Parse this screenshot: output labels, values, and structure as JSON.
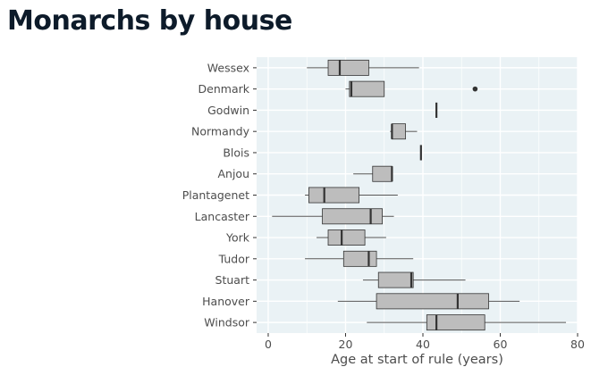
{
  "page": {
    "title": "Monarchs by house"
  },
  "chart_data": {
    "type": "boxplot",
    "orientation": "horizontal",
    "xlabel": "Age at start of rule (years)",
    "ylabel": "",
    "xlim": [
      -3,
      80
    ],
    "xticks": [
      0,
      20,
      40,
      60,
      80
    ],
    "grid": true,
    "categories": [
      "Wessex",
      "Denmark",
      "Godwin",
      "Normandy",
      "Blois",
      "Anjou",
      "Plantagenet",
      "Lancaster",
      "York",
      "Tudor",
      "Stuart",
      "Hanover",
      "Windsor"
    ],
    "boxes": [
      {
        "house": "Wessex",
        "min": 10,
        "q1": 15.5,
        "median": 18.5,
        "q3": 26,
        "max": 39,
        "outliers": []
      },
      {
        "house": "Denmark",
        "min": 20,
        "q1": 21,
        "median": 21.5,
        "q3": 30,
        "max": 30,
        "outliers": [
          53.5
        ]
      },
      {
        "house": "Godwin",
        "min": 43.5,
        "q1": 43.5,
        "median": 43.5,
        "q3": 43.5,
        "max": 43.5,
        "outliers": []
      },
      {
        "house": "Normandy",
        "min": 31.5,
        "q1": 32,
        "median": 32,
        "q3": 35.5,
        "max": 38.5,
        "outliers": []
      },
      {
        "house": "Blois",
        "min": 39.5,
        "q1": 39.5,
        "median": 39.5,
        "q3": 39.5,
        "max": 39.5,
        "outliers": []
      },
      {
        "house": "Anjou",
        "min": 22,
        "q1": 27,
        "median": 32,
        "q3": 32,
        "max": 32,
        "outliers": []
      },
      {
        "house": "Plantagenet",
        "min": 9.5,
        "q1": 10.5,
        "median": 14.5,
        "q3": 23.5,
        "max": 33.5,
        "outliers": []
      },
      {
        "house": "Lancaster",
        "min": 1,
        "q1": 14,
        "median": 26.5,
        "q3": 29.5,
        "max": 32.5,
        "outliers": []
      },
      {
        "house": "York",
        "min": 12.5,
        "q1": 15.5,
        "median": 19,
        "q3": 25,
        "max": 30.5,
        "outliers": []
      },
      {
        "house": "Tudor",
        "min": 9.5,
        "q1": 19.5,
        "median": 26,
        "q3": 28,
        "max": 37.5,
        "outliers": []
      },
      {
        "house": "Stuart",
        "min": 24.5,
        "q1": 28.5,
        "median": 37,
        "q3": 37.5,
        "max": 51,
        "outliers": []
      },
      {
        "house": "Hanover",
        "min": 18,
        "q1": 28,
        "median": 49,
        "q3": 57,
        "max": 65,
        "outliers": []
      },
      {
        "house": "Windsor",
        "min": 25.5,
        "q1": 41,
        "median": 43.5,
        "q3": 56,
        "max": 77,
        "outliers": []
      }
    ]
  },
  "colors": {
    "panel_bg": "#eaf2f5",
    "grid": "#ffffff",
    "box_fill": "#bdbdbd",
    "box_stroke": "#333333",
    "median": "#333333",
    "whisker": "#555555",
    "outlier": "#333333",
    "title": "#0d1b2a",
    "axis_text": "#4d4d4d"
  }
}
